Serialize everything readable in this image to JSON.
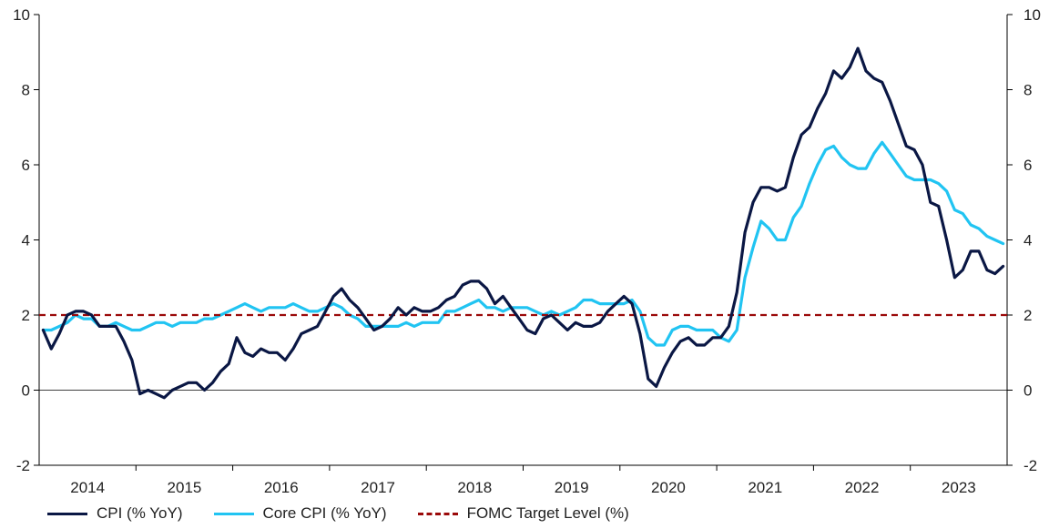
{
  "chart_data": {
    "type": "line",
    "title": "",
    "xlabel": "",
    "ylabel": "",
    "ylim": [
      -2,
      10
    ],
    "y_ticks": [
      "-2",
      "0",
      "2",
      "4",
      "6",
      "8",
      "10"
    ],
    "y_tick_values": [
      -2,
      0,
      2,
      4,
      6,
      8,
      10
    ],
    "x_tick_labels": [
      "2014",
      "2015",
      "2016",
      "2017",
      "2018",
      "2019",
      "2020",
      "2021",
      "2022",
      "2023"
    ],
    "x_start": "2014-01",
    "x_end": "2023-11",
    "grid": false,
    "legend_position": "bottom",
    "series": [
      {
        "name": "CPI (% YoY)",
        "color": "#0a1744",
        "values": [
          1.6,
          1.1,
          1.5,
          2.0,
          2.1,
          2.1,
          2.0,
          1.7,
          1.7,
          1.7,
          1.3,
          0.8,
          -0.1,
          0.0,
          -0.1,
          -0.2,
          0.0,
          0.1,
          0.2,
          0.2,
          0.0,
          0.2,
          0.5,
          0.7,
          1.4,
          1.0,
          0.9,
          1.1,
          1.0,
          1.0,
          0.8,
          1.1,
          1.5,
          1.6,
          1.7,
          2.1,
          2.5,
          2.7,
          2.4,
          2.2,
          1.9,
          1.6,
          1.7,
          1.9,
          2.2,
          2.0,
          2.2,
          2.1,
          2.1,
          2.2,
          2.4,
          2.5,
          2.8,
          2.9,
          2.9,
          2.7,
          2.3,
          2.5,
          2.2,
          1.9,
          1.6,
          1.5,
          1.9,
          2.0,
          1.8,
          1.6,
          1.8,
          1.7,
          1.7,
          1.8,
          2.1,
          2.3,
          2.5,
          2.3,
          1.5,
          0.3,
          0.1,
          0.6,
          1.0,
          1.3,
          1.4,
          1.2,
          1.2,
          1.4,
          1.4,
          1.7,
          2.6,
          4.2,
          5.0,
          5.4,
          5.4,
          5.3,
          5.4,
          6.2,
          6.8,
          7.0,
          7.5,
          7.9,
          8.5,
          8.3,
          8.6,
          9.1,
          8.5,
          8.3,
          8.2,
          7.7,
          7.1,
          6.5,
          6.4,
          6.0,
          5.0,
          4.9,
          4.0,
          3.0,
          3.2,
          3.7,
          3.7,
          3.2,
          3.1,
          3.3
        ],
        "dashed": false
      },
      {
        "name": "Core CPI (% YoY)",
        "color": "#21c4f2",
        "values": [
          1.6,
          1.6,
          1.7,
          1.8,
          2.0,
          1.9,
          1.9,
          1.7,
          1.7,
          1.8,
          1.7,
          1.6,
          1.6,
          1.7,
          1.8,
          1.8,
          1.7,
          1.8,
          1.8,
          1.8,
          1.9,
          1.9,
          2.0,
          2.1,
          2.2,
          2.3,
          2.2,
          2.1,
          2.2,
          2.2,
          2.2,
          2.3,
          2.2,
          2.1,
          2.1,
          2.2,
          2.3,
          2.2,
          2.0,
          1.9,
          1.7,
          1.7,
          1.7,
          1.7,
          1.7,
          1.8,
          1.7,
          1.8,
          1.8,
          1.8,
          2.1,
          2.1,
          2.2,
          2.3,
          2.4,
          2.2,
          2.2,
          2.1,
          2.2,
          2.2,
          2.2,
          2.1,
          2.0,
          2.1,
          2.0,
          2.1,
          2.2,
          2.4,
          2.4,
          2.3,
          2.3,
          2.3,
          2.3,
          2.4,
          2.1,
          1.4,
          1.2,
          1.2,
          1.6,
          1.7,
          1.7,
          1.6,
          1.6,
          1.6,
          1.4,
          1.3,
          1.6,
          3.0,
          3.8,
          4.5,
          4.3,
          4.0,
          4.0,
          4.6,
          4.9,
          5.5,
          6.0,
          6.4,
          6.5,
          6.2,
          6.0,
          5.9,
          5.9,
          6.3,
          6.6,
          6.3,
          6.0,
          5.7,
          5.6,
          5.6,
          5.6,
          5.5,
          5.3,
          4.8,
          4.7,
          4.4,
          4.3,
          4.1,
          4.0,
          3.9
        ],
        "dashed": false
      },
      {
        "name": "FOMC Target Level (%)",
        "color": "#9b0a0a",
        "values": [
          2,
          2
        ],
        "dashed": true
      }
    ]
  }
}
